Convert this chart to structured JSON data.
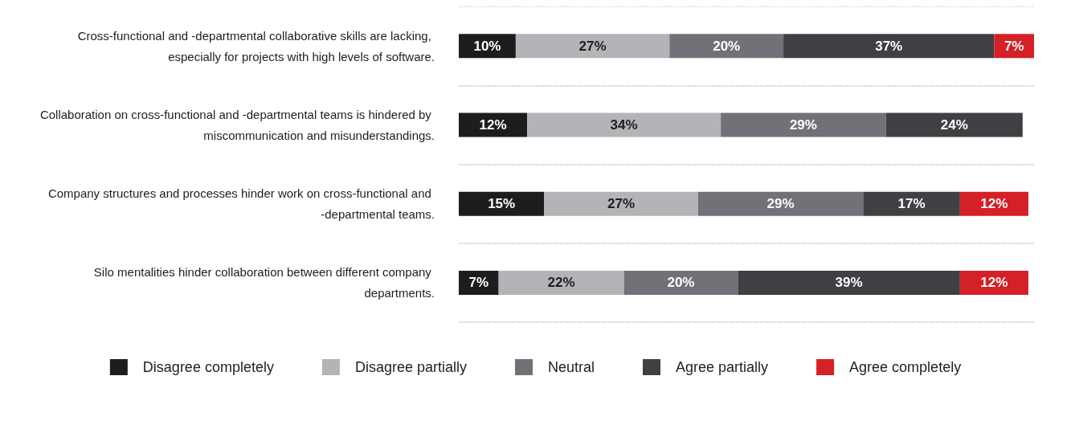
{
  "chart_data": {
    "type": "bar",
    "orientation": "horizontal",
    "stacked": true,
    "grid": "y",
    "legend": "bottom",
    "categories": [
      "Cross-functional and -departmental collaborative skills are lacking, especially for projects with high levels of software.",
      "Collaboration on cross-functional and -departmental teams is hindered by miscommunication and misunderstandings.",
      "Company structures and processes hinder work on cross-functional and -departmental teams.",
      "Silo mentalities hinder collaboration between different company departments."
    ],
    "series": [
      {
        "name": "Disagree completely",
        "color": "#1d1d1b",
        "values": [
          10,
          12,
          15,
          7
        ],
        "value_labels": [
          "10%",
          "12%",
          "15%",
          "7%"
        ]
      },
      {
        "name": "Disagree partially",
        "color": "#b4b3b8",
        "values": [
          27,
          34,
          27,
          22
        ],
        "value_labels": [
          "27%",
          "34%",
          "27%",
          "22%"
        ]
      },
      {
        "name": "Neutral",
        "color": "#737177",
        "values": [
          20,
          29,
          29,
          20
        ],
        "value_labels": [
          "20%",
          "29%",
          "29%",
          "20%"
        ]
      },
      {
        "name": "Agree partially",
        "color": "#403f44",
        "values": [
          37,
          24,
          17,
          39
        ],
        "value_labels": [
          "37%",
          "24%",
          "17%",
          "39%"
        ]
      },
      {
        "name": "Agree completely",
        "color": "#d42027",
        "values": [
          7,
          null,
          12,
          12
        ],
        "value_labels": [
          "7%",
          null,
          "12%",
          "12%"
        ]
      }
    ]
  }
}
